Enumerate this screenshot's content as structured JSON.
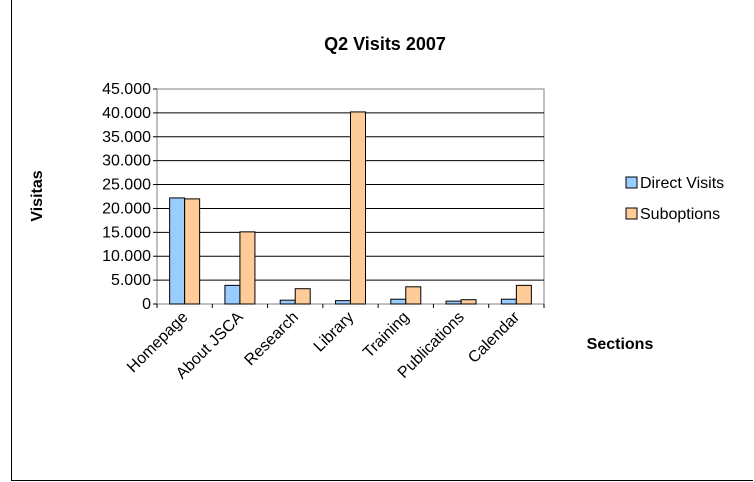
{
  "chart_data": {
    "type": "bar",
    "title": "Q2 Visits 2007",
    "xlabel": "Sections",
    "ylabel": "Visitas",
    "categories": [
      "Homepage",
      "About JSCA",
      "Research",
      "Library",
      "Training",
      "Publications",
      "Calendar"
    ],
    "series": [
      {
        "name": "Direct Visits",
        "values": [
          22200,
          3900,
          800,
          700,
          1000,
          600,
          1000
        ],
        "color": "#99ccff"
      },
      {
        "name": "Suboptions",
        "values": [
          22000,
          15100,
          3200,
          40200,
          3600,
          900,
          3900
        ],
        "color": "#ffcc99"
      }
    ],
    "ylim": [
      0,
      45000
    ],
    "yticks": [
      "0",
      "5.000",
      "10.000",
      "15.000",
      "20.000",
      "25.000",
      "30.000",
      "35.000",
      "40.000",
      "45.000"
    ],
    "ytick_values": [
      0,
      5000,
      10000,
      15000,
      20000,
      25000,
      30000,
      35000,
      40000,
      45000
    ],
    "grid": true,
    "legend": "right",
    "plot_background": "#ffffff",
    "border_color": "#808080"
  }
}
